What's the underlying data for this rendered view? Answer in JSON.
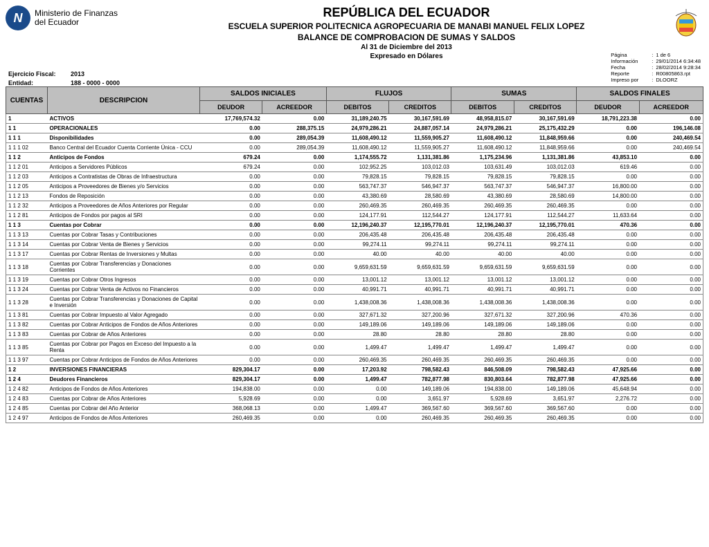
{
  "header": {
    "logo_text1": "Ministerio de Finanzas",
    "logo_text2": "del Ecuador",
    "title": "REPÚBLICA DEL ECUADOR",
    "subtitle1": "ESCUELA SUPERIOR POLITECNICA AGROPECUARIA DE MANABI MANUEL FELIX LOPEZ",
    "subtitle2": "BALANCE DE COMPROBACION DE SUMAS Y SALDOS",
    "subtitle3": "Al 31 de Diciembre del 2013",
    "subtitle4": "Expresado en Dólares"
  },
  "meta_left": {
    "ejercicio_label": "Ejercicio Fiscal:",
    "ejercicio_value": "2013",
    "entidad_label": "Entidad:",
    "entidad_value": "188   -   0000  -   0000"
  },
  "meta_right": {
    "pagina_label": "Página",
    "pagina_value": "1      de      6",
    "informacion_label": "Información",
    "informacion_value": "29/01/2014  6:34:48",
    "fecha_label": "Fecha",
    "fecha_value": "28/02/2014  9:28:34",
    "reporte_label": "Reporte",
    "reporte_value": "R00805863.rpt",
    "impreso_label": "Impreso por",
    "impreso_value": "DLOORZ"
  },
  "columns": {
    "cuentas": "CUENTAS",
    "descripcion": "DESCRIPCION",
    "saldos_iniciales": "SALDOS INICIALES",
    "flujos": "FLUJOS",
    "sumas": "SUMAS",
    "saldos_finales": "SALDOS FINALES",
    "deudor": "DEUDOR",
    "acreedor": "ACREEDOR",
    "debitos": "DEBITOS",
    "creditos": "CREDITOS"
  },
  "rows": [
    {
      "bold": true,
      "cuenta": "1",
      "desc": "ACTIVOS",
      "si_d": "17,769,574.32",
      "si_a": "0.00",
      "f_d": "31,189,240.75",
      "f_c": "30,167,591.69",
      "s_d": "48,958,815.07",
      "s_c": "30,167,591.69",
      "sf_d": "18,791,223.38",
      "sf_a": "0.00"
    },
    {
      "bold": true,
      "cuenta": "1 1",
      "desc": "OPERACIONALES",
      "si_d": "0.00",
      "si_a": "288,375.15",
      "f_d": "24,979,286.21",
      "f_c": "24,887,057.14",
      "s_d": "24,979,286.21",
      "s_c": "25,175,432.29",
      "sf_d": "0.00",
      "sf_a": "196,146.08"
    },
    {
      "bold": true,
      "cuenta": "1 1 1",
      "desc": "Disponibilidades",
      "si_d": "0.00",
      "si_a": "289,054.39",
      "f_d": "11,608,490.12",
      "f_c": "11,559,905.27",
      "s_d": "11,608,490.12",
      "s_c": "11,848,959.66",
      "sf_d": "0.00",
      "sf_a": "240,469.54"
    },
    {
      "bold": false,
      "cuenta": "1 1 1 02",
      "desc": "Banco Central del Ecuador Cuenta Corriente Única - CCU",
      "si_d": "0.00",
      "si_a": "289,054.39",
      "f_d": "11,608,490.12",
      "f_c": "11,559,905.27",
      "s_d": "11,608,490.12",
      "s_c": "11,848,959.66",
      "sf_d": "0.00",
      "sf_a": "240,469.54"
    },
    {
      "bold": true,
      "cuenta": "1 1 2",
      "desc": "Anticipos de Fondos",
      "si_d": "679.24",
      "si_a": "0.00",
      "f_d": "1,174,555.72",
      "f_c": "1,131,381.86",
      "s_d": "1,175,234.96",
      "s_c": "1,131,381.86",
      "sf_d": "43,853.10",
      "sf_a": "0.00"
    },
    {
      "bold": false,
      "cuenta": "1 1 2 01",
      "desc": "Anticipos a Servidores Públicos",
      "si_d": "679.24",
      "si_a": "0.00",
      "f_d": "102,952.25",
      "f_c": "103,012.03",
      "s_d": "103,631.49",
      "s_c": "103,012.03",
      "sf_d": "619.46",
      "sf_a": "0.00"
    },
    {
      "bold": false,
      "cuenta": "1 1 2 03",
      "desc": "Anticipos a Contratistas de Obras de Infraestructura",
      "si_d": "0.00",
      "si_a": "0.00",
      "f_d": "79,828.15",
      "f_c": "79,828.15",
      "s_d": "79,828.15",
      "s_c": "79,828.15",
      "sf_d": "0.00",
      "sf_a": "0.00"
    },
    {
      "bold": false,
      "cuenta": "1 1 2 05",
      "desc": "Anticipos a Proveedores de Bienes y/o Servicios",
      "si_d": "0.00",
      "si_a": "0.00",
      "f_d": "563,747.37",
      "f_c": "546,947.37",
      "s_d": "563,747.37",
      "s_c": "546,947.37",
      "sf_d": "16,800.00",
      "sf_a": "0.00"
    },
    {
      "bold": false,
      "cuenta": "1 1 2 13",
      "desc": "Fondos de Reposición",
      "si_d": "0.00",
      "si_a": "0.00",
      "f_d": "43,380.69",
      "f_c": "28,580.69",
      "s_d": "43,380.69",
      "s_c": "28,580.69",
      "sf_d": "14,800.00",
      "sf_a": "0.00"
    },
    {
      "bold": false,
      "cuenta": "1 1 2 32",
      "desc": "Anticipos a Proveedores de Años Anteriores por Regular",
      "si_d": "0.00",
      "si_a": "0.00",
      "f_d": "260,469.35",
      "f_c": "260,469.35",
      "s_d": "260,469.35",
      "s_c": "260,469.35",
      "sf_d": "0.00",
      "sf_a": "0.00"
    },
    {
      "bold": false,
      "cuenta": "1 1 2 81",
      "desc": "Anticipos de Fondos por pagos al SRI",
      "si_d": "0.00",
      "si_a": "0.00",
      "f_d": "124,177.91",
      "f_c": "112,544.27",
      "s_d": "124,177.91",
      "s_c": "112,544.27",
      "sf_d": "11,633.64",
      "sf_a": "0.00"
    },
    {
      "bold": true,
      "cuenta": "1 1 3",
      "desc": "Cuentas por Cobrar",
      "si_d": "0.00",
      "si_a": "0.00",
      "f_d": "12,196,240.37",
      "f_c": "12,195,770.01",
      "s_d": "12,196,240.37",
      "s_c": "12,195,770.01",
      "sf_d": "470.36",
      "sf_a": "0.00"
    },
    {
      "bold": false,
      "cuenta": "1 1 3 13",
      "desc": "Cuentas por Cobrar Tasas y Contribuciones",
      "si_d": "0.00",
      "si_a": "0.00",
      "f_d": "206,435.48",
      "f_c": "206,435.48",
      "s_d": "206,435.48",
      "s_c": "206,435.48",
      "sf_d": "0.00",
      "sf_a": "0.00"
    },
    {
      "bold": false,
      "cuenta": "1 1 3 14",
      "desc": "Cuentas por Cobrar Venta de Bienes y Servicios",
      "si_d": "0.00",
      "si_a": "0.00",
      "f_d": "99,274.11",
      "f_c": "99,274.11",
      "s_d": "99,274.11",
      "s_c": "99,274.11",
      "sf_d": "0.00",
      "sf_a": "0.00"
    },
    {
      "bold": false,
      "cuenta": "1 1 3 17",
      "desc": "Cuentas por Cobrar Rentas de Inversiones y Multas",
      "si_d": "0.00",
      "si_a": "0.00",
      "f_d": "40.00",
      "f_c": "40.00",
      "s_d": "40.00",
      "s_c": "40.00",
      "sf_d": "0.00",
      "sf_a": "0.00"
    },
    {
      "bold": false,
      "cuenta": "1 1 3 18",
      "desc": "Cuentas por Cobrar Transferencias y Donaciones Corrientes",
      "si_d": "0.00",
      "si_a": "0.00",
      "f_d": "9,659,631.59",
      "f_c": "9,659,631.59",
      "s_d": "9,659,631.59",
      "s_c": "9,659,631.59",
      "sf_d": "0.00",
      "sf_a": "0.00"
    },
    {
      "bold": false,
      "cuenta": "1 1 3 19",
      "desc": "Cuentas por Cobrar Otros Ingresos",
      "si_d": "0.00",
      "si_a": "0.00",
      "f_d": "13,001.12",
      "f_c": "13,001.12",
      "s_d": "13,001.12",
      "s_c": "13,001.12",
      "sf_d": "0.00",
      "sf_a": "0.00"
    },
    {
      "bold": false,
      "cuenta": "1 1 3 24",
      "desc": "Cuentas por Cobrar Venta de Activos no Financieros",
      "si_d": "0.00",
      "si_a": "0.00",
      "f_d": "40,991.71",
      "f_c": "40,991.71",
      "s_d": "40,991.71",
      "s_c": "40,991.71",
      "sf_d": "0.00",
      "sf_a": "0.00"
    },
    {
      "bold": false,
      "cuenta": "1 1 3 28",
      "desc": "Cuentas por Cobrar Transferencias y Donaciones de Capital e Inversión",
      "si_d": "0.00",
      "si_a": "0.00",
      "f_d": "1,438,008.36",
      "f_c": "1,438,008.36",
      "s_d": "1,438,008.36",
      "s_c": "1,438,008.36",
      "sf_d": "0.00",
      "sf_a": "0.00"
    },
    {
      "bold": false,
      "cuenta": "1 1 3 81",
      "desc": "Cuentas por Cobrar Impuesto al Valor Agregado",
      "si_d": "0.00",
      "si_a": "0.00",
      "f_d": "327,671.32",
      "f_c": "327,200.96",
      "s_d": "327,671.32",
      "s_c": "327,200.96",
      "sf_d": "470.36",
      "sf_a": "0.00"
    },
    {
      "bold": false,
      "cuenta": "1 1 3 82",
      "desc": "Cuentas por Cobrar Anticipos de Fondos de Años Anteriores",
      "si_d": "0.00",
      "si_a": "0.00",
      "f_d": "149,189.06",
      "f_c": "149,189.06",
      "s_d": "149,189.06",
      "s_c": "149,189.06",
      "sf_d": "0.00",
      "sf_a": "0.00"
    },
    {
      "bold": false,
      "cuenta": "1 1 3 83",
      "desc": "Cuentas por Cobrar de Años Anteriores",
      "si_d": "0.00",
      "si_a": "0.00",
      "f_d": "28.80",
      "f_c": "28.80",
      "s_d": "28.80",
      "s_c": "28.80",
      "sf_d": "0.00",
      "sf_a": "0.00"
    },
    {
      "bold": false,
      "cuenta": "1 1 3 85",
      "desc": "Cuentas por Cobrar por Pagos en Exceso del Impuesto a la Renta",
      "si_d": "0.00",
      "si_a": "0.00",
      "f_d": "1,499.47",
      "f_c": "1,499.47",
      "s_d": "1,499.47",
      "s_c": "1,499.47",
      "sf_d": "0.00",
      "sf_a": "0.00"
    },
    {
      "bold": false,
      "cuenta": "1 1 3 97",
      "desc": "Cuentas por Cobrar Anticipos de Fondos de Años Anteriores",
      "si_d": "0.00",
      "si_a": "0.00",
      "f_d": "260,469.35",
      "f_c": "260,469.35",
      "s_d": "260,469.35",
      "s_c": "260,469.35",
      "sf_d": "0.00",
      "sf_a": "0.00"
    },
    {
      "bold": true,
      "cuenta": "1 2",
      "desc": "INVERSIONES FINANCIERAS",
      "si_d": "829,304.17",
      "si_a": "0.00",
      "f_d": "17,203.92",
      "f_c": "798,582.43",
      "s_d": "846,508.09",
      "s_c": "798,582.43",
      "sf_d": "47,925.66",
      "sf_a": "0.00"
    },
    {
      "bold": true,
      "cuenta": "1 2 4",
      "desc": "Deudores Financieros",
      "si_d": "829,304.17",
      "si_a": "0.00",
      "f_d": "1,499.47",
      "f_c": "782,877.98",
      "s_d": "830,803.64",
      "s_c": "782,877.98",
      "sf_d": "47,925.66",
      "sf_a": "0.00"
    },
    {
      "bold": false,
      "cuenta": "1 2 4 82",
      "desc": "Anticipos de Fondos de Años Anteriores",
      "si_d": "194,838.00",
      "si_a": "0.00",
      "f_d": "0.00",
      "f_c": "149,189.06",
      "s_d": "194,838.00",
      "s_c": "149,189.06",
      "sf_d": "45,648.94",
      "sf_a": "0.00"
    },
    {
      "bold": false,
      "cuenta": "1 2 4 83",
      "desc": "Cuentas por Cobrar de Años Anteriores",
      "si_d": "5,928.69",
      "si_a": "0.00",
      "f_d": "0.00",
      "f_c": "3,651.97",
      "s_d": "5,928.69",
      "s_c": "3,651.97",
      "sf_d": "2,276.72",
      "sf_a": "0.00"
    },
    {
      "bold": false,
      "cuenta": "1 2 4 85",
      "desc": "Cuentas por Cobrar del Año Anterior",
      "si_d": "368,068.13",
      "si_a": "0.00",
      "f_d": "1,499.47",
      "f_c": "369,567.60",
      "s_d": "369,567.60",
      "s_c": "369,567.60",
      "sf_d": "0.00",
      "sf_a": "0.00"
    },
    {
      "bold": false,
      "cuenta": "1 2 4 97",
      "desc": "Anticipos de Fondos de Años Anteriores",
      "si_d": "260,469.35",
      "si_a": "0.00",
      "f_d": "0.00",
      "f_c": "260,469.35",
      "s_d": "260,469.35",
      "s_c": "260,469.35",
      "sf_d": "0.00",
      "sf_a": "0.00"
    }
  ]
}
